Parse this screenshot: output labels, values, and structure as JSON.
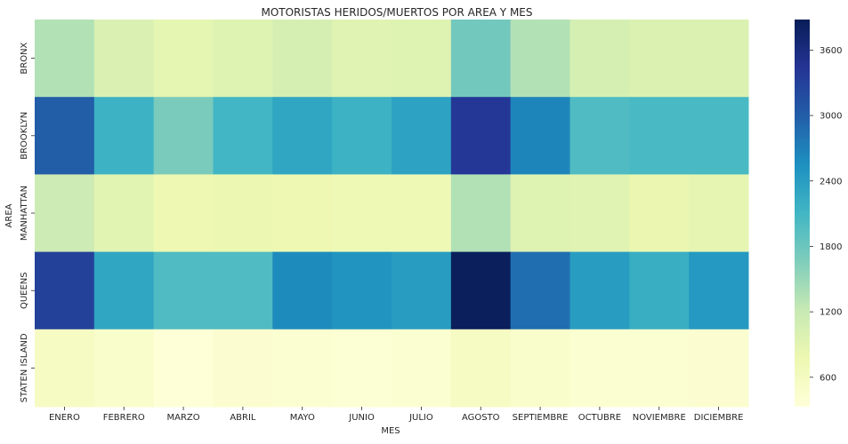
{
  "chart_data": {
    "type": "heatmap",
    "title": "MOTORISTAS HERIDOS/MUERTOS POR AREA Y MES",
    "xlabel": "MES",
    "ylabel": "AREA",
    "x": [
      "ENERO",
      "FEBRERO",
      "MARZO",
      "ABRIL",
      "MAYO",
      "JUNIO",
      "JULIO",
      "AGOSTO",
      "SEPTIEMBRE",
      "OCTUBRE",
      "NOVIEMBRE",
      "DICIEMBRE"
    ],
    "y": [
      "BRONX",
      "BROOKLYN",
      "MANHATTAN",
      "QUEENS",
      "STATEN ISLAND"
    ],
    "values": [
      [
        1350,
        1000,
        870,
        950,
        1050,
        920,
        950,
        1750,
        1350,
        1050,
        980,
        980
      ],
      [
        3000,
        2150,
        1700,
        2100,
        2300,
        2150,
        2350,
        3400,
        2650,
        2000,
        2050,
        2050
      ],
      [
        1150,
        900,
        750,
        780,
        750,
        720,
        720,
        1350,
        950,
        920,
        800,
        850
      ],
      [
        3300,
        2300,
        2000,
        2000,
        2600,
        2500,
        2400,
        3850,
        2850,
        2400,
        2200,
        2450
      ],
      [
        560,
        480,
        350,
        430,
        420,
        400,
        420,
        570,
        480,
        420,
        420,
        430
      ]
    ],
    "colorbar": {
      "ticks": [
        600,
        1200,
        1800,
        2400,
        3000,
        3600
      ],
      "min": 330,
      "max": 3880
    },
    "colormap": "YlGnBu",
    "grid": false,
    "legend": "colorbar-right"
  }
}
